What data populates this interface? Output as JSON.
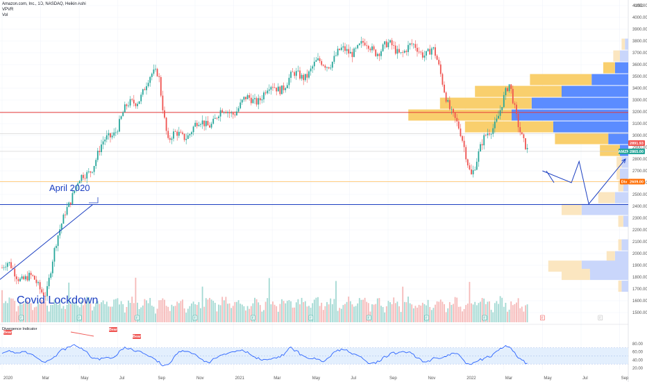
{
  "header": {
    "symbol_line": "Amazon.com, Inc., 1D, NASDAQ, Heikin Ashi",
    "indicator_1": "VPVR",
    "indicator_2": "Vol"
  },
  "panel": {
    "label": "Divergence Indicator"
  },
  "chart_data": {
    "type": "candlestick",
    "price_axis": {
      "ticks": [
        1500,
        1600,
        1700,
        1800,
        1900,
        2000,
        2100,
        2200,
        2300,
        2400,
        2500,
        2600,
        2700,
        2800,
        2900,
        3000,
        3100,
        3200,
        3300,
        3400,
        3500,
        3600,
        3700,
        3800,
        3900,
        4000,
        4100
      ],
      "tick_labels": [
        "1500.00",
        "1600.00",
        "1700.00",
        "1800.00",
        "1900.00",
        "2000.00",
        "2100.00",
        "2200.00",
        "2300.00",
        "2400.00",
        "2500.00",
        "2600.00",
        "2700.00",
        "2800.00",
        "2900.00",
        "3000.00",
        "3100.00",
        "3200.00",
        "3300.00",
        "3400.00",
        "3500.00",
        "3600.00",
        "3700.00",
        "3800.00",
        "3900.00",
        "4000.00",
        "4100.00"
      ],
      "currency": "USD"
    },
    "time_axis": {
      "labels": [
        "2020",
        "Mar",
        "May",
        "Jul",
        "Sep",
        "Nov",
        "2021",
        "Mar",
        "May",
        "Jul",
        "Sep",
        "Nov",
        "2022",
        "Mar",
        "May",
        "Jul",
        "Sep"
      ]
    },
    "price_labels": [
      {
        "text": "2891.93",
        "color": "#ef5350"
      },
      {
        "text": "AMZN",
        "color": "#26a69a"
      },
      {
        "text": "2865.00",
        "color": "#26a69a"
      },
      {
        "text": "Div",
        "color": "#ff6d00"
      },
      {
        "text": "2609.00",
        "color": "#ff6d00"
      }
    ],
    "horizontal_lines": [
      {
        "price": 3195,
        "color": "#e53935"
      },
      {
        "price": 3015,
        "color": "#cccccc"
      },
      {
        "price": 2865,
        "color": "#cccccc"
      },
      {
        "price": 2609,
        "color": "#ffcc80"
      },
      {
        "price": 2415,
        "color": "#1a3ec1"
      }
    ],
    "annotations": [
      {
        "text": "April 2020"
      },
      {
        "text": "Covid Lockdown"
      }
    ],
    "key_points": [
      {
        "date": "2020-01",
        "price": 1880
      },
      {
        "date": "2020-03",
        "price": 1690
      },
      {
        "date": "2020-04",
        "price": 2410
      },
      {
        "date": "2020-07",
        "price": 3180
      },
      {
        "date": "2020-09",
        "price": 3550
      },
      {
        "date": "2020-09",
        "price": 2950
      },
      {
        "date": "2021-01",
        "price": 3250
      },
      {
        "date": "2021-07",
        "price": 3750
      },
      {
        "date": "2021-11",
        "price": 3720
      },
      {
        "date": "2022-01",
        "price": 2700
      },
      {
        "date": "2022-03",
        "price": 3400
      },
      {
        "date": "2022-04",
        "price": 2800
      }
    ],
    "projection_path": [
      {
        "date": "2022-05",
        "price": 2700
      },
      {
        "date": "2022-06",
        "price": 2600
      },
      {
        "date": "2022-06",
        "price": 2780
      },
      {
        "date": "2022-07",
        "price": 2420
      },
      {
        "date": "2022-09",
        "price": 2800
      }
    ],
    "volume_profile": [
      {
        "price": 3470,
        "up": 0.37,
        "down": 0.22
      },
      {
        "price": 3370,
        "up": 0.52,
        "down": 0.4
      },
      {
        "price": 3270,
        "up": 0.55,
        "down": 0.58
      },
      {
        "price": 3170,
        "up": 0.62,
        "down": 0.7
      },
      {
        "price": 3070,
        "up": 0.53,
        "down": 0.45
      },
      {
        "price": 2970,
        "up": 0.32,
        "down": 0.12
      },
      {
        "price": 2870,
        "up": 0.12,
        "down": 0.05
      },
      {
        "price": 3570,
        "up": 0.07,
        "down": 0.08
      },
      {
        "price": 3670,
        "up": 0.04,
        "down": 0.05
      },
      {
        "price": 3770,
        "up": 0.02,
        "down": 0.02
      },
      {
        "price": 2770,
        "up": 0.03,
        "down": 0.04
      },
      {
        "price": 2670,
        "up": 0.02,
        "down": 0.05
      },
      {
        "price": 2570,
        "up": 0.03,
        "down": 0.03
      },
      {
        "price": 2470,
        "up": 0.1,
        "down": 0.08
      },
      {
        "price": 2370,
        "up": 0.12,
        "down": 0.28
      },
      {
        "price": 2270,
        "up": 0.03,
        "down": 0.03
      },
      {
        "price": 2070,
        "up": 0.02,
        "down": 0.04
      },
      {
        "price": 1970,
        "up": 0.05,
        "down": 0.08
      },
      {
        "price": 1890,
        "up": 0.2,
        "down": 0.28
      },
      {
        "price": 1820,
        "up": 0.17,
        "down": 0.23
      },
      {
        "price": 1720,
        "up": 0.02,
        "down": 0.04
      }
    ],
    "oscillator": {
      "ticks": [
        20,
        40,
        60,
        80
      ],
      "tick_labels": [
        "20.00",
        "40.00",
        "60.00",
        "80.00"
      ],
      "band": [
        30,
        70
      ],
      "signals": [
        {
          "text": "Bear"
        },
        {
          "text": "Bear"
        },
        {
          "text": "Bear"
        }
      ]
    },
    "event_marker": "E",
    "grid": true
  }
}
